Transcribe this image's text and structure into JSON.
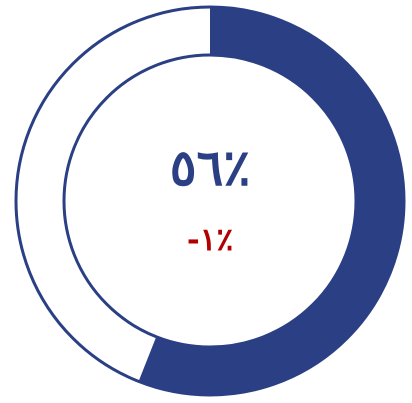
{
  "chart_data": {
    "type": "pie",
    "variant": "donut",
    "value_percent": 56,
    "remainder_percent": 44,
    "main_label": "٥٦٪",
    "change_label": "-١٪",
    "colors": {
      "filled": "#2a3f84",
      "empty": "#ffffff",
      "outline": "#2a3f84",
      "main_text": "#2a3f84",
      "change_text": "#b00000"
    }
  }
}
